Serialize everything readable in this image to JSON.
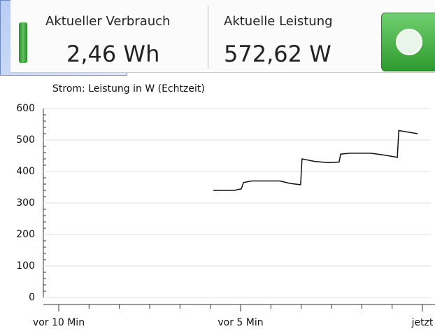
{
  "header": {
    "consumption": {
      "label": "Aktueller Verbrauch",
      "value": "2,46 Wh"
    },
    "power": {
      "label": "Aktuelle Leistung",
      "value": "572,62 W"
    }
  },
  "chart_data": {
    "type": "line",
    "title": "Strom: Leistung in W (Echtzeit)",
    "x": [
      -5.75,
      -5.17,
      -4.98,
      -4.92,
      -4.69,
      -3.92,
      -3.63,
      -3.35,
      -3.31,
      -2.96,
      -2.58,
      -2.29,
      -2.25,
      -2.0,
      -1.42,
      -1.04,
      -0.69,
      -0.65,
      -0.13
    ],
    "series": [
      {
        "color": "#111111",
        "values": [
          340,
          340,
          345,
          365,
          370,
          370,
          362,
          358,
          440,
          432,
          428,
          430,
          455,
          458,
          458,
          452,
          445,
          530,
          520
        ]
      }
    ],
    "xlim": [
      -10,
      0
    ],
    "xticks": [
      {
        "value": -10,
        "label": "vor 10 Min"
      },
      {
        "value": -5,
        "label": "vor 5 Min"
      },
      {
        "value": 0,
        "label": "jetzt"
      }
    ],
    "ylim": [
      0,
      600
    ],
    "yticks": [
      0,
      100,
      200,
      300,
      400,
      500,
      600
    ],
    "grid": true
  }
}
